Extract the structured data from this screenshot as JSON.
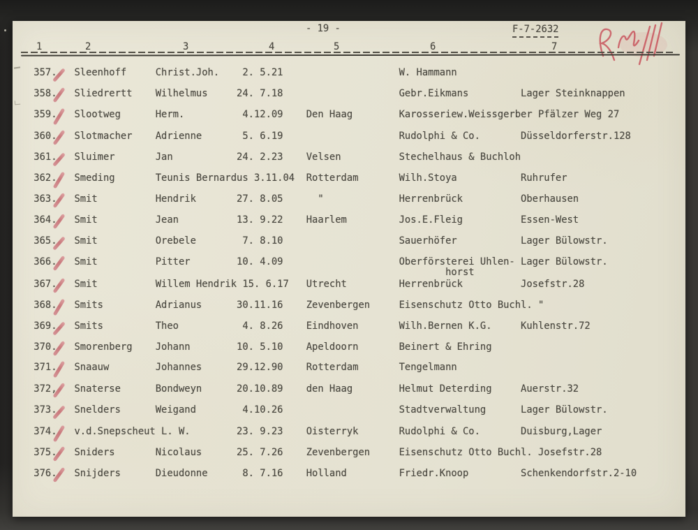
{
  "page": {
    "page_number": "- 19 -",
    "reference_number": "F-7-2632",
    "handwritten_annotation": "illegible red pencil initials",
    "column_headers": [
      "1",
      "2",
      "3",
      "4",
      "5",
      "6",
      "7"
    ]
  },
  "table": {
    "rows": [
      {
        "num": "357.",
        "surname": "Sleenhoff",
        "firstname": "Christ.Joh.",
        "birthdate": "2. 5.21",
        "city": "",
        "employer": "W. Hammann",
        "address": "",
        "checked": true
      },
      {
        "num": "358.",
        "surname": "Sliedrertt",
        "firstname": "Wilhelmus",
        "birthdate": "24. 7.18",
        "city": "",
        "employer": "Gebr.Eikmans",
        "address": "Lager Steinknappen",
        "checked": true
      },
      {
        "num": "359.",
        "surname": "Slootweg",
        "firstname": "Herm.",
        "birthdate": "4.12.09",
        "city": "Den Haag",
        "employer": "Karosseriew.Weissgerber",
        "address": "Pfälzer Weg 27",
        "checked": true
      },
      {
        "num": "360.",
        "surname": "Slotmacher",
        "firstname": "Adrienne",
        "birthdate": "5. 6.19",
        "city": "",
        "employer": "Rudolphi & Co.",
        "address": "Düsseldorferstr.128",
        "checked": true
      },
      {
        "num": "361.",
        "surname": "Sluimer",
        "firstname": "Jan",
        "birthdate": "24. 2.23",
        "city": "Velsen",
        "employer": "Stechelhaus & Buchloh",
        "address": "",
        "checked": true
      },
      {
        "num": "362.",
        "surname": "Smeding",
        "firstname": "Teunis Bernardus",
        "birthdate": "3.11.04",
        "city": "Rotterdam",
        "employer": "Wilh.Stoya",
        "address": "Ruhrufer",
        "checked": true
      },
      {
        "num": "363.",
        "surname": "Smit",
        "firstname": "Hendrik",
        "birthdate": "27. 8.05",
        "city": "\"",
        "employer": "Herrenbrück",
        "address": "Oberhausen",
        "checked": true
      },
      {
        "num": "364.",
        "surname": "Smit",
        "firstname": "Jean",
        "birthdate": "13. 9.22",
        "city": "Haarlem",
        "employer": "Jos.E.Fleig",
        "address": "Essen-West",
        "checked": true
      },
      {
        "num": "365.",
        "surname": "Smit",
        "firstname": "Orebele",
        "birthdate": "7. 8.10",
        "city": "",
        "employer": "Sauerhöfer",
        "address": "Lager Bülowstr.",
        "checked": true
      },
      {
        "num": "366.",
        "surname": "Smit",
        "firstname": "Pitter",
        "birthdate": "10. 4.09",
        "city": "",
        "employer": "Oberförsterei Uhlen-",
        "employer_cont": "horst",
        "address": "Lager Bülowstr.",
        "checked": true
      },
      {
        "num": "367.",
        "surname": "Smit",
        "firstname": "Willem Hendrik",
        "birthdate": "15. 6.17",
        "city": "Utrecht",
        "employer": "Herrenbrück",
        "address": "Josefstr.28",
        "checked": true
      },
      {
        "num": "368.",
        "surname": "Smits",
        "firstname": "Adrianus",
        "birthdate": "30.11.16",
        "city": "Zevenbergen",
        "employer": "Eisenschutz Otto Buchl.",
        "address": "\"",
        "checked": true
      },
      {
        "num": "369.",
        "surname": "Smits",
        "firstname": "Theo",
        "birthdate": "4. 8.26",
        "city": "Eindhoven",
        "employer": "Wilh.Bernen K.G.",
        "address": "Kuhlenstr.72",
        "checked": true
      },
      {
        "num": "370.",
        "surname": "Smorenberg",
        "firstname": "Johann",
        "birthdate": "10. 5.10",
        "city": "Apeldoorn",
        "employer": "Beinert & Ehring",
        "address": "",
        "checked": true
      },
      {
        "num": "371.",
        "surname": "Snaauw",
        "firstname": "Johannes",
        "birthdate": "29.12.90",
        "city": "Rotterdam",
        "employer": "Tengelmann",
        "address": "",
        "checked": true
      },
      {
        "num": "372,",
        "surname": "Snaterse",
        "firstname": "Bondweyn",
        "birthdate": "20.10.89",
        "city": "den Haag",
        "employer": "Helmut Deterding",
        "address": "Auerstr.32",
        "checked": true
      },
      {
        "num": "373.",
        "surname": "Snelders",
        "firstname": "Weigand",
        "birthdate": "4.10.26",
        "city": "",
        "employer": "Stadtverwaltung",
        "address": "Lager Bülowstr.",
        "checked": true
      },
      {
        "num": "374.",
        "surname": "v.d.Snepscheut",
        "firstname": "L. W.",
        "birthdate": "23. 9.23",
        "city": "Oisterryk",
        "employer": "Rudolphi & Co.",
        "address": "Duisburg,Lager",
        "checked": true
      },
      {
        "num": "375.",
        "surname": "Sniders",
        "firstname": "Nicolaus",
        "birthdate": "25. 7.26",
        "city": "Zevenbergen",
        "employer": "Eisenschutz Otto Buchl.",
        "address": "Josefstr.28",
        "checked": true
      },
      {
        "num": "376.",
        "surname": "Snijders",
        "firstname": "Dieudonne",
        "birthdate": "8. 7.16",
        "city": "Holland",
        "employer": "Friedr.Knoop",
        "address": "Schenkendorfstr.2-10",
        "checked": true
      }
    ]
  },
  "colors": {
    "paper": "#e7e4d4",
    "ink": "#4a4840",
    "red_pencil": "#c85560",
    "background": "#2e2d2a"
  }
}
